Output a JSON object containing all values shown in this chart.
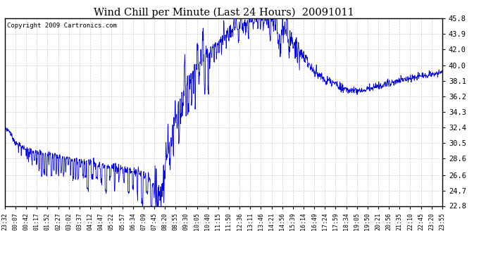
{
  "title": "Wind Chill per Minute (Last 24 Hours)  20091011",
  "copyright": "Copyright 2009 Cartronics.com",
  "line_color": "#0000cc",
  "background_color": "#ffffff",
  "grid_color": "#cccccc",
  "ylim": [
    22.8,
    45.8
  ],
  "yticks": [
    22.8,
    24.7,
    26.6,
    28.6,
    30.5,
    32.4,
    34.3,
    36.2,
    38.1,
    40.0,
    42.0,
    43.9,
    45.8
  ],
  "xtick_labels": [
    "23:32",
    "00:07",
    "00:42",
    "01:17",
    "01:52",
    "02:27",
    "03:02",
    "03:37",
    "04:12",
    "04:47",
    "05:22",
    "05:57",
    "06:34",
    "07:09",
    "07:45",
    "08:20",
    "08:55",
    "09:30",
    "10:05",
    "10:40",
    "11:15",
    "11:50",
    "12:36",
    "13:11",
    "13:46",
    "14:21",
    "14:56",
    "15:39",
    "16:14",
    "16:49",
    "17:24",
    "17:59",
    "18:34",
    "19:05",
    "19:50",
    "20:21",
    "20:56",
    "21:35",
    "22:10",
    "22:45",
    "23:20",
    "23:55"
  ]
}
